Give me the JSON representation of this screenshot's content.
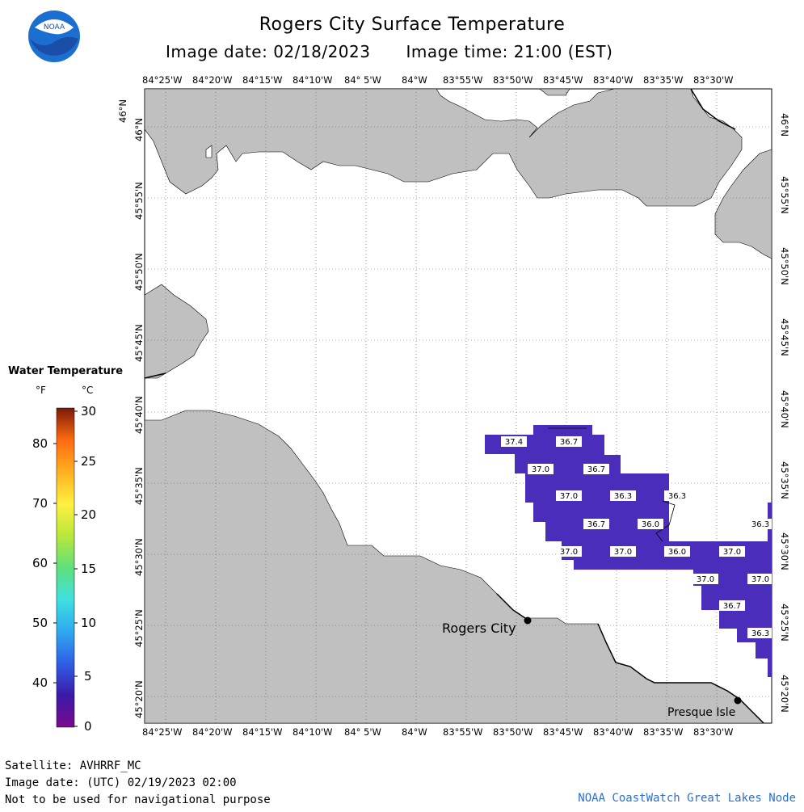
{
  "title": "Rogers City Surface Temperature",
  "image_date": "Image date: 02/18/2023",
  "image_time": "Image time: 21:00 (EST)",
  "logo_text": "NOAA",
  "lon_labels": [
    "84°25'W",
    "84°20'W",
    "84°15'W",
    "84°10'W",
    "84° 5'W",
    "84°W",
    "83°55'W",
    "83°50'W",
    "83°45'W",
    "83°40'W",
    "83°35'W",
    "83°30'W"
  ],
  "lat_labels": [
    "46°N",
    "45°55'N",
    "45°50'N",
    "45°45'N",
    "45°40'N",
    "45°35'N",
    "45°30'N",
    "45°25'N",
    "45°20'N"
  ],
  "legend": {
    "title": "Water Temperature",
    "unit_f": "°F",
    "unit_c": "°C",
    "fahrenheit_ticks": [
      "80",
      "70",
      "60",
      "50",
      "40"
    ],
    "celsius_ticks": [
      "30",
      "25",
      "20",
      "15",
      "10",
      "5",
      "0"
    ],
    "colors": [
      "#2d006b",
      "#4b2db8",
      "#2f5fe6",
      "#2fa9f0",
      "#3fe0e0",
      "#5fe07a",
      "#b8e83a",
      "#fff040",
      "#ffb020",
      "#ff6a10",
      "#c83a10",
      "#7a1a08"
    ]
  },
  "places": [
    {
      "name": "Rogers City"
    },
    {
      "name": "Presque Isle"
    }
  ],
  "temperature_labels": [
    "37.4",
    "36.7",
    "37.0",
    "36.7",
    "37.0",
    "36.3",
    "36.3",
    "36.7",
    "36.0",
    "36.3",
    "37.0",
    "37.0",
    "36.0",
    "37.0",
    "37.0",
    "37.0",
    "36.7",
    "36.3"
  ],
  "colors": {
    "land": "#c0c0c0",
    "water_temp": "#4b2dbb",
    "credit": "#2a6fd6"
  },
  "footer": {
    "satellite": "Satellite: AVHRRF_MC",
    "utc_date": "Image date: (UTC) 02/19/2023  02:00",
    "disclaimer": "Not to be used for navigational purpose",
    "credit": "NOAA CoastWatch Great Lakes Node"
  }
}
